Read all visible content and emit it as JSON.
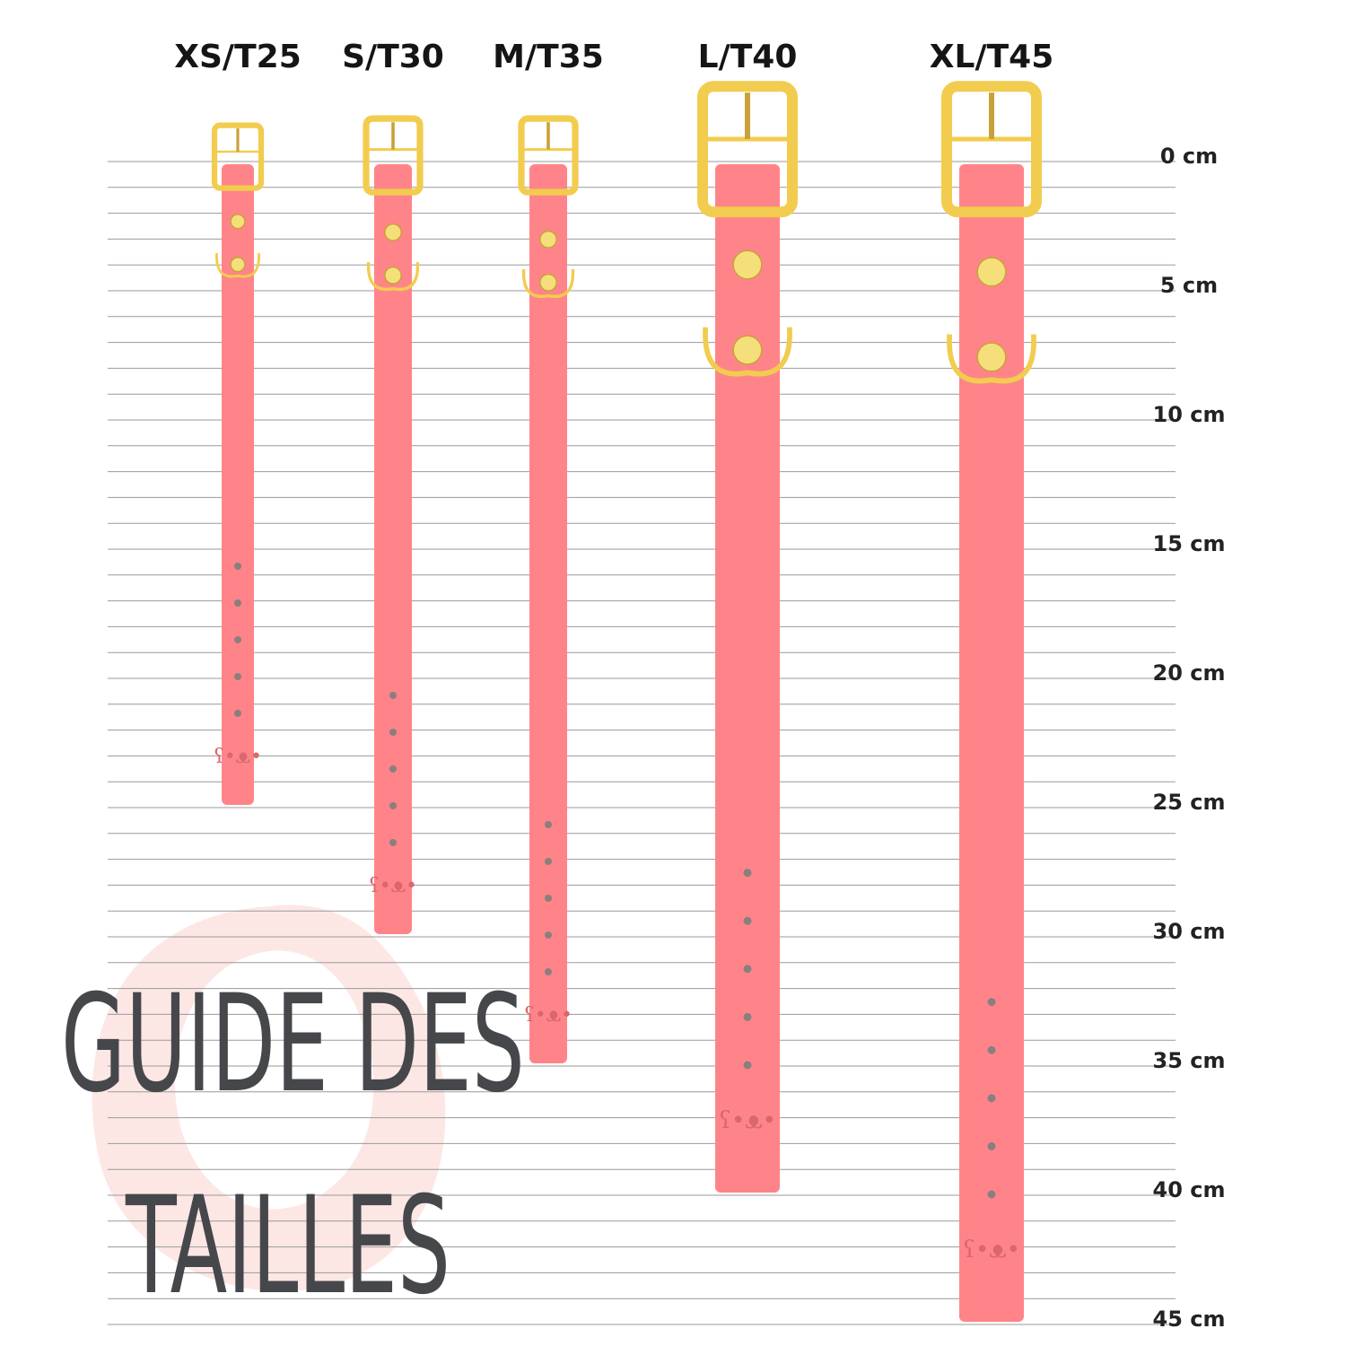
{
  "title": {
    "line1": "GUIDE DES",
    "line2": "TAILLES"
  },
  "scale": {
    "unit": "cm",
    "min_cm": 0,
    "max_cm": 45,
    "line_step_cm": 1,
    "labels": [
      "0 cm",
      "5 cm",
      "10 cm",
      "15 cm",
      "20 cm",
      "25 cm",
      "30 cm",
      "35 cm",
      "40 cm",
      "45 cm"
    ]
  },
  "collars": [
    {
      "label": "XS/T25",
      "length_cm": 25,
      "width": "thin"
    },
    {
      "label": "S/T30",
      "length_cm": 30,
      "width": "medium"
    },
    {
      "label": "M/T35",
      "length_cm": 35,
      "width": "medium"
    },
    {
      "label": "L/T40",
      "length_cm": 40,
      "width": "wide"
    },
    {
      "label": "XL/T45",
      "length_cm": 45,
      "width": "wide"
    }
  ],
  "colors": {
    "strap": "#FF8489",
    "gold": "#F2CC4E",
    "gold_dark": "#C9A13A",
    "lines": "#9a9a9a",
    "title": "#45474b",
    "brush": "#FDE4E2",
    "holes": "#8a7f7f"
  },
  "icons": [
    "buckle-icon",
    "d-ring-icon",
    "rivet-icon",
    "logo-icon"
  ]
}
